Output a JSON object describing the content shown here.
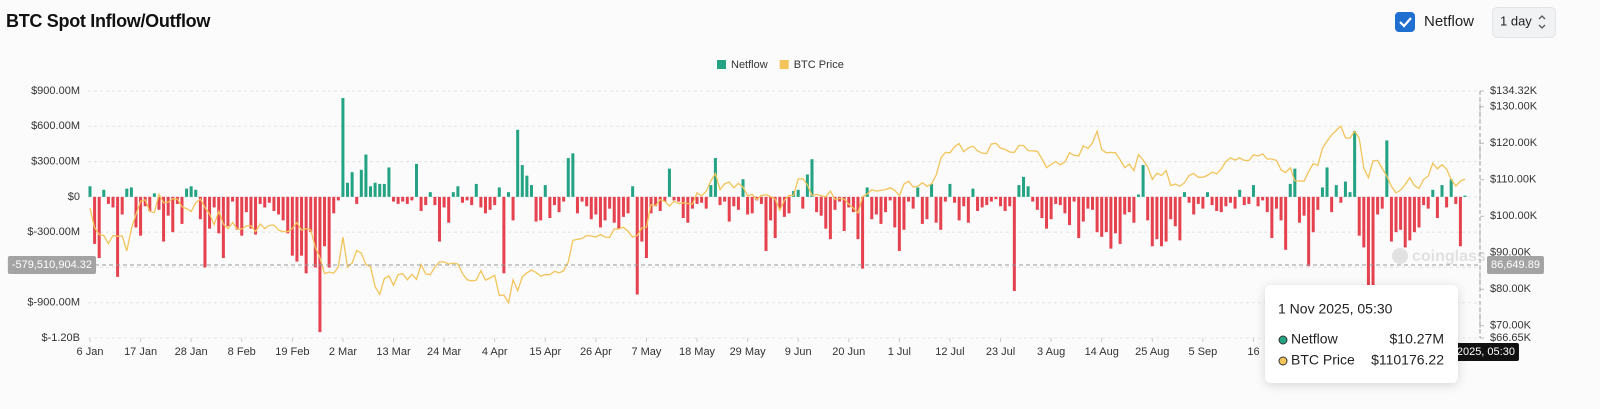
{
  "controls": {
    "interval": "1 day"
  },
  "chart_data": {
    "type": "bar",
    "title": "BTC Spot Inflow/Outflow",
    "series": [
      {
        "name": "Netflow",
        "type": "bar",
        "color": "#23a383",
        "negative_color": "#e5414e",
        "values": [
          90,
          -400,
          -520,
          60,
          -60,
          -90,
          -680,
          -150,
          70,
          80,
          -260,
          -330,
          -80,
          -120,
          30,
          -110,
          -380,
          -160,
          -300,
          -60,
          -230,
          70,
          90,
          60,
          -190,
          -600,
          -270,
          -90,
          -310,
          -520,
          -250,
          -40,
          -280,
          -330,
          -130,
          -270,
          -320,
          -60,
          -90,
          -50,
          -120,
          -150,
          -200,
          -310,
          -500,
          -550,
          -500,
          -650,
          -300,
          -600,
          -1150,
          -420,
          -600,
          -140,
          -30,
          840,
          120,
          210,
          -60,
          230,
          360,
          90,
          120,
          110,
          110,
          250,
          -40,
          -60,
          -40,
          -60,
          -30,
          280,
          -120,
          -70,
          40,
          -70,
          -380,
          -90,
          -220,
          40,
          90,
          -50,
          -30,
          -70,
          110,
          -90,
          -140,
          -110,
          -70,
          80,
          -650,
          40,
          -200,
          570,
          270,
          180,
          100,
          -210,
          -200,
          100,
          -180,
          -70,
          -130,
          -40,
          330,
          370,
          -140,
          -40,
          -80,
          -190,
          -150,
          -260,
          -200,
          -100,
          -220,
          -270,
          -170,
          -140,
          90,
          -830,
          -380,
          -520,
          -140,
          -80,
          -120,
          -40,
          240,
          -30,
          -40,
          -180,
          -220,
          -100,
          -60,
          -50,
          -100,
          100,
          330,
          -70,
          -40,
          -210,
          -80,
          -110,
          150,
          -150,
          -140,
          -30,
          -60,
          -460,
          -200,
          -350,
          -100,
          -170,
          -140,
          50,
          60,
          -100,
          190,
          320,
          -130,
          -160,
          -270,
          -360,
          -110,
          -40,
          -290,
          -90,
          -130,
          -360,
          -610,
          80,
          -190,
          -150,
          -230,
          -130,
          -30,
          -260,
          -460,
          -280,
          -40,
          -100,
          80,
          -230,
          -190,
          110,
          -220,
          -280,
          -40,
          110,
          -50,
          -200,
          -80,
          -220,
          70,
          -120,
          -90,
          -70,
          -40,
          -20,
          -80,
          -120,
          -80,
          -800,
          100,
          170,
          90,
          -40,
          -110,
          -180,
          -270,
          -190,
          -60,
          -70,
          -140,
          -240,
          -40,
          -350,
          -210,
          -100,
          -110,
          -300,
          -340,
          -300,
          -440,
          -310,
          -400,
          -150,
          -130,
          -220,
          20,
          270,
          -200,
          -420,
          -360,
          -420,
          -380,
          -190,
          -250,
          -370,
          40,
          -50,
          -150,
          -60,
          -100,
          40,
          -70,
          -120,
          -130,
          -80,
          -50,
          -100,
          60,
          -70,
          -60,
          100,
          -80,
          -30,
          -130,
          -350,
          -100,
          -200,
          -450,
          110,
          240,
          -220,
          -160,
          -590,
          -300,
          -110,
          80,
          250,
          -130,
          100,
          -50,
          130,
          40,
          560,
          -330,
          -430,
          -830,
          -820,
          -150,
          -100,
          480,
          -380,
          -300,
          -280,
          -430,
          -370,
          -300,
          -260,
          -70,
          -100,
          60,
          -180,
          100,
          -90,
          150,
          -60,
          -420,
          10.27
        ]
      },
      {
        "name": "BTC Price",
        "type": "line",
        "axis": "y2",
        "color": "#f2c45a",
        "values": [
          102200,
          96900,
          95000,
          94700,
          92500,
          94700,
          94500,
          94600,
          90500,
          96600,
          100500,
          104100,
          104500,
          101300,
          101000,
          106000,
          103700,
          103900,
          104800,
          104700,
          102600,
          102100,
          101300,
          103700,
          104700,
          102400,
          100600,
          97700,
          101400,
          97800,
          96600,
          98300,
          96500,
          96500,
          97400,
          97400,
          95800,
          97900,
          96600,
          97500,
          97600,
          96200,
          95800,
          95800,
          96600,
          98300,
          96200,
          96600,
          96300,
          91500,
          88700,
          84300,
          84700,
          84400,
          86100,
          94300,
          86100,
          87200,
          90600,
          89900,
          86800,
          86200,
          80700,
          78600,
          82900,
          83700,
          81100,
          84000,
          84300,
          82600,
          84100,
          82700,
          86800,
          84200,
          84000,
          86100,
          87500,
          87500,
          86900,
          87200,
          86900,
          84300,
          82600,
          82300,
          82500,
          85100,
          82500,
          83100,
          83800,
          78300,
          78400,
          76300,
          82600,
          79600,
          83400,
          84500,
          85300,
          84600,
          83600,
          84000,
          84000,
          84900,
          84500,
          85100,
          87500,
          93400,
          93700,
          93900,
          94700,
          94600,
          94300,
          95000,
          94300,
          94200,
          96500,
          96500,
          97000,
          95900,
          94300,
          94700,
          96800,
          97000,
          103200,
          102900,
          104600,
          104100,
          102800,
          104100,
          103500,
          103700,
          103500,
          103300,
          106400,
          105600,
          106800,
          109700,
          111700,
          107300,
          108900,
          109400,
          107800,
          109000,
          108000,
          105600,
          106000,
          104600,
          105700,
          105900,
          105400,
          104700,
          101600,
          104400,
          105700,
          105700,
          110200,
          110300,
          108600,
          105700,
          106000,
          105600,
          105300,
          106900,
          104600,
          104900,
          104700,
          103300,
          102200,
          100900,
          105400,
          106100,
          107300,
          106900,
          107100,
          107300,
          107800,
          107100,
          105700,
          108800,
          109600,
          108000,
          108200,
          109200,
          108200,
          108900,
          111300,
          115900,
          117500,
          117400,
          119000,
          119900,
          117700,
          118700,
          119200,
          117900,
          117300,
          117200,
          119800,
          120000,
          118700,
          118300,
          117600,
          117500,
          119400,
          119400,
          118000,
          117900,
          117800,
          115800,
          113300,
          114200,
          115000,
          114100,
          114900,
          117400,
          116700,
          116500,
          119300,
          118600,
          120100,
          123300,
          118300,
          117400,
          117500,
          117400,
          115500,
          113300,
          114300,
          112500,
          116900,
          115400,
          113500,
          110100,
          111800,
          111200,
          112500,
          108400,
          108800,
          108200,
          109200,
          111200,
          111700,
          110700,
          110700,
          111200,
          112100,
          111600,
          113000,
          115000,
          116000,
          115400,
          116000,
          115300,
          115300,
          116800,
          116500,
          117100,
          115700,
          115700,
          115300,
          112700,
          112000,
          113300,
          109700,
          109700,
          109600,
          112200,
          114400,
          113900,
          118600,
          120600,
          122300,
          123500,
          124700,
          121500,
          121400,
          123300,
          121400,
          113200,
          110600,
          115200,
          115300,
          113100,
          111000,
          108200,
          106400,
          107200,
          108700,
          110600,
          108400,
          107600,
          110100,
          111000,
          114500,
          113000,
          114100,
          112900,
          110100,
          108300,
          109600,
          110176.22
        ]
      }
    ],
    "xlim": [
      0,
      299
    ],
    "xticks": [
      {
        "value": 0,
        "label": "6 Jan"
      },
      {
        "value": 11,
        "label": "17 Jan"
      },
      {
        "value": 22,
        "label": "28 Jan"
      },
      {
        "value": 33,
        "label": "8 Feb"
      },
      {
        "value": 44,
        "label": "19 Feb"
      },
      {
        "value": 55,
        "label": "2 Mar"
      },
      {
        "value": 66,
        "label": "13 Mar"
      },
      {
        "value": 77,
        "label": "24 Mar"
      },
      {
        "value": 88,
        "label": "4 Apr"
      },
      {
        "value": 99,
        "label": "15 Apr"
      },
      {
        "value": 110,
        "label": "26 Apr"
      },
      {
        "value": 121,
        "label": "7 May"
      },
      {
        "value": 132,
        "label": "18 May"
      },
      {
        "value": 143,
        "label": "29 May"
      },
      {
        "value": 154,
        "label": "9 Jun"
      },
      {
        "value": 165,
        "label": "20 Jun"
      },
      {
        "value": 176,
        "label": "1 Jul"
      },
      {
        "value": 187,
        "label": "12 Jul"
      },
      {
        "value": 198,
        "label": "23 Jul"
      },
      {
        "value": 209,
        "label": "3 Aug"
      },
      {
        "value": 220,
        "label": "14 Aug"
      },
      {
        "value": 231,
        "label": "25 Aug"
      },
      {
        "value": 242,
        "label": "5 Sep"
      },
      {
        "value": 253,
        "label": "16"
      }
    ],
    "ylim": [
      -1200,
      900
    ],
    "yticks": [
      {
        "value": -1200,
        "label": "$-1.20B"
      },
      {
        "value": -900,
        "label": "$-900.00M"
      },
      {
        "value": -600,
        "label": "$-600.00M"
      },
      {
        "value": -300,
        "label": "$-300.00M"
      },
      {
        "value": 0,
        "label": "$0"
      },
      {
        "value": 300,
        "label": "$300.00M"
      },
      {
        "value": 600,
        "label": "$600.00M"
      },
      {
        "value": 900,
        "label": "$900.00M"
      }
    ],
    "y2lim": [
      66650,
      134320
    ],
    "y2ticks": [
      {
        "value": 66650,
        "label": "$66.65K"
      },
      {
        "value": 70000,
        "label": "$70.00K"
      },
      {
        "value": 80000,
        "label": "$80.00K"
      },
      {
        "value": 90000,
        "label": "$90.00K"
      },
      {
        "value": 100000,
        "label": "$100.00K"
      },
      {
        "value": 110000,
        "label": "$110.00K"
      },
      {
        "value": 120000,
        "label": "$120.00K"
      },
      {
        "value": 130000,
        "label": "$130.00K"
      },
      {
        "value": 134320,
        "label": "$134.32K"
      }
    ],
    "grid": true,
    "legend": "top",
    "watermark": "coinglass",
    "crosshair": {
      "y": {
        "value": -579.51090432,
        "label": "-579,510,904.32"
      },
      "y2": {
        "value": 86649.89,
        "label": "86,649.89"
      }
    },
    "tooltip": {
      "title": "1 Nov 2025, 05:30",
      "value_labels": [
        "$10.27M",
        "$110176.22"
      ]
    }
  }
}
